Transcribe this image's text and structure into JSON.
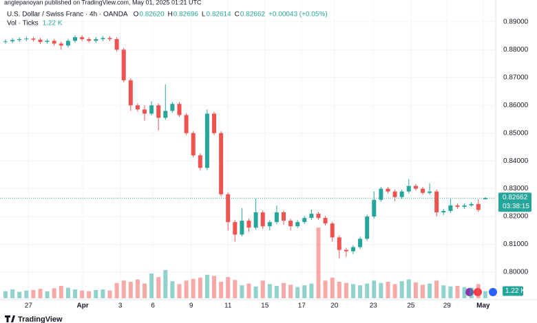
{
  "chart_data": {
    "type": "candlestick",
    "published": "anglepanoyan published on TradingView.com, May 01, 2025 01:21 UTC",
    "title": "U.S. Dollar / Swiss Franc · 4h · OANDA",
    "ohlc_header": [
      {
        "label": "O",
        "value": "0.82620"
      },
      {
        "label": "H",
        "value": "0.82696"
      },
      {
        "label": "L",
        "value": "0.82614"
      },
      {
        "label": "C",
        "value": "0.82662"
      }
    ],
    "change": "+0.00043 (+0.05%)",
    "volume_label": "Vol · Ticks",
    "volume_last": "1.22 K",
    "brand": "TradingView",
    "up_color": "#26a69a",
    "down_color": "#ef5350",
    "ylim": [
      0.7906,
      0.8959
    ],
    "yticks": [
      {
        "value": 0.89,
        "label": "0.89000"
      },
      {
        "value": 0.88,
        "label": "0.88000"
      },
      {
        "value": 0.87,
        "label": "0.87000"
      },
      {
        "value": 0.86,
        "label": "0.86000"
      },
      {
        "value": 0.85,
        "label": "0.85000"
      },
      {
        "value": 0.84,
        "label": "0.84000"
      },
      {
        "value": 0.83,
        "label": "0.83000"
      },
      {
        "value": 0.82,
        "label": "0.82000"
      },
      {
        "value": 0.81,
        "label": "0.81000"
      },
      {
        "value": 0.8,
        "label": "0.80000"
      }
    ],
    "last_price": {
      "value": 0.82662,
      "label": "0.82662"
    },
    "countdown": "03:38:15",
    "xlim": [
      -0.3,
      70.3
    ],
    "xticks": [
      {
        "value": 3.3,
        "label": "27"
      },
      {
        "value": 11.1,
        "label": "Apr"
      },
      {
        "value": 16.5,
        "label": "3"
      },
      {
        "value": 21.2,
        "label": "6"
      },
      {
        "value": 26.7,
        "label": "9"
      },
      {
        "value": 32,
        "label": "11"
      },
      {
        "value": 37.3,
        "label": "15"
      },
      {
        "value": 42.6,
        "label": "17"
      },
      {
        "value": 47.3,
        "label": "20"
      },
      {
        "value": 52.9,
        "label": "23"
      },
      {
        "value": 58.3,
        "label": "25"
      },
      {
        "value": 63.5,
        "label": "29"
      },
      {
        "value": 68.7,
        "label": "May"
      }
    ],
    "open": [
      0.8828,
      0.883,
      0.8835,
      0.8838,
      0.884,
      0.8836,
      0.8828,
      0.8832,
      0.8822,
      0.8815,
      0.8832,
      0.8845,
      0.8838,
      0.8832,
      0.8838,
      0.8842,
      0.8838,
      0.88,
      0.869,
      0.86,
      0.8585,
      0.857,
      0.86,
      0.8555,
      0.858,
      0.8605,
      0.8565,
      0.85,
      0.842,
      0.8375,
      0.857,
      0.85,
      0.828,
      0.818,
      0.8135,
      0.8185,
      0.816,
      0.8215,
      0.8165,
      0.818,
      0.8215,
      0.8185,
      0.8165,
      0.818,
      0.8195,
      0.821,
      0.8195,
      0.8175,
      0.8125,
      0.808,
      0.8075,
      0.809,
      0.812,
      0.82,
      0.826,
      0.83,
      0.829,
      0.827,
      0.829,
      0.831,
      0.83,
      0.8285,
      0.829,
      0.8215,
      0.822,
      0.824,
      0.8235,
      0.824,
      0.8245,
      0.8262
    ],
    "high": [
      0.8837,
      0.8842,
      0.8845,
      0.8847,
      0.8847,
      0.8843,
      0.8839,
      0.8839,
      0.8829,
      0.8839,
      0.8852,
      0.8852,
      0.8845,
      0.8845,
      0.8849,
      0.8849,
      0.8845,
      0.8807,
      0.8697,
      0.8607,
      0.86,
      0.8615,
      0.8607,
      0.8675,
      0.8612,
      0.8612,
      0.8572,
      0.8507,
      0.8427,
      0.8585,
      0.8577,
      0.8507,
      0.8287,
      0.8187,
      0.823,
      0.8192,
      0.8265,
      0.8222,
      0.8187,
      0.824,
      0.8222,
      0.8192,
      0.8187,
      0.8202,
      0.8225,
      0.8217,
      0.8202,
      0.8182,
      0.8132,
      0.8087,
      0.8097,
      0.8127,
      0.8207,
      0.829,
      0.8307,
      0.8307,
      0.8297,
      0.8297,
      0.8335,
      0.8317,
      0.8307,
      0.832,
      0.8297,
      0.8227,
      0.8265,
      0.8247,
      0.8247,
      0.8252,
      0.8262,
      0.82696
    ],
    "low": [
      0.8821,
      0.8823,
      0.8828,
      0.8831,
      0.8829,
      0.8821,
      0.8821,
      0.8815,
      0.88,
      0.8808,
      0.8825,
      0.8831,
      0.8825,
      0.8825,
      0.8831,
      0.8831,
      0.8793,
      0.8683,
      0.858,
      0.8578,
      0.8545,
      0.8563,
      0.851,
      0.8548,
      0.8573,
      0.8558,
      0.8493,
      0.8413,
      0.8365,
      0.8368,
      0.8493,
      0.8273,
      0.815,
      0.811,
      0.8128,
      0.8145,
      0.8153,
      0.8155,
      0.815,
      0.8173,
      0.817,
      0.815,
      0.8158,
      0.8173,
      0.8188,
      0.8188,
      0.8168,
      0.811,
      0.805,
      0.8055,
      0.8065,
      0.8083,
      0.8113,
      0.8193,
      0.8253,
      0.8283,
      0.8255,
      0.8263,
      0.8283,
      0.8293,
      0.8278,
      0.8278,
      0.82,
      0.8205,
      0.8213,
      0.8228,
      0.8228,
      0.8235,
      0.8217,
      0.82614
    ],
    "close": [
      0.883,
      0.8835,
      0.8838,
      0.884,
      0.8836,
      0.8828,
      0.8832,
      0.8822,
      0.8815,
      0.8832,
      0.8845,
      0.8838,
      0.8832,
      0.8838,
      0.8842,
      0.8838,
      0.88,
      0.869,
      0.86,
      0.8585,
      0.857,
      0.86,
      0.8555,
      0.858,
      0.8605,
      0.8565,
      0.85,
      0.842,
      0.8375,
      0.857,
      0.85,
      0.828,
      0.818,
      0.8135,
      0.8185,
      0.816,
      0.8215,
      0.8165,
      0.818,
      0.8215,
      0.8185,
      0.8165,
      0.818,
      0.8195,
      0.821,
      0.8195,
      0.8175,
      0.8125,
      0.808,
      0.8075,
      0.809,
      0.812,
      0.82,
      0.826,
      0.83,
      0.829,
      0.827,
      0.829,
      0.831,
      0.83,
      0.8285,
      0.829,
      0.8215,
      0.822,
      0.824,
      0.8235,
      0.824,
      0.8245,
      0.8224,
      0.82662
    ],
    "vlim": [
      0,
      14000
    ],
    "volume": [
      1200,
      1500,
      1100,
      1300,
      1400,
      1600,
      1200,
      1700,
      2100,
      1800,
      1500,
      1300,
      1200,
      1400,
      1500,
      1300,
      2600,
      3000,
      2800,
      3200,
      2500,
      4200,
      3600,
      4800,
      2900,
      2400,
      3000,
      3300,
      3500,
      4000,
      3800,
      2800,
      3600,
      3100,
      2200,
      2500,
      2000,
      3000,
      2400,
      2100,
      2600,
      2300,
      1900,
      2200,
      2500,
      12000,
      3000,
      3500,
      2800,
      2600,
      2400,
      2200,
      2500,
      3000,
      2600,
      2800,
      2400,
      2900,
      3200,
      2700,
      2300,
      2500,
      3000,
      2200,
      2000,
      2100,
      1900,
      1800,
      2400,
      1220
    ],
    "grid": true
  }
}
